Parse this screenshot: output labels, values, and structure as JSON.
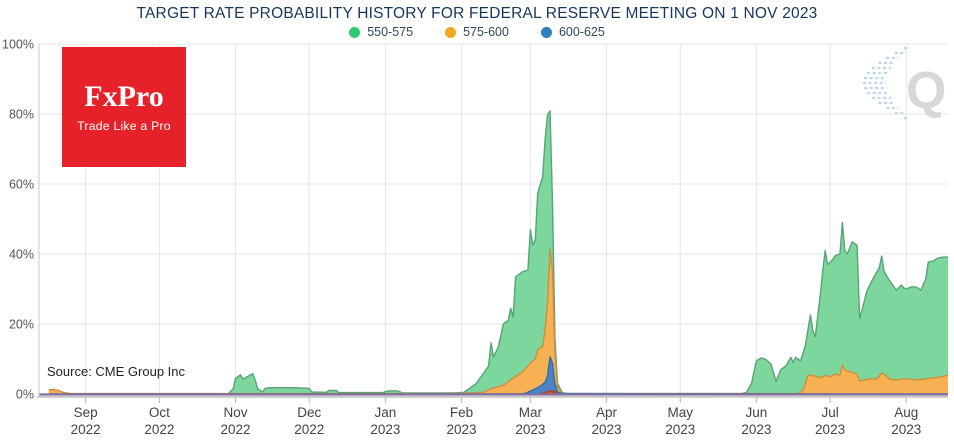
{
  "source_note": "Source: CME Group Inc",
  "branding": {
    "logo_text": "FxPro",
    "logo_tagline": "Trade Like a Pro",
    "logo_bg": "#e62129",
    "logo_text_color": "#ffffff"
  },
  "watermark": {
    "letter": "Q",
    "letter_color": "#d7d7d7",
    "swoosh_color": "#b9d7ee"
  },
  "chart_data": {
    "type": "area",
    "title": "TARGET RATE PROBABILITY HISTORY FOR FEDERAL RESERVE MEETING ON 1 NOV 2023",
    "title_color": "#17365d",
    "grid": true,
    "grid_color": "#e6e6e6",
    "axis_color": "#c9c9c9",
    "baseline_color": "#84719f",
    "legend_position": "top",
    "x_range": [
      "2022-08-13",
      "2023-08-18"
    ],
    "y_range": [
      0,
      100
    ],
    "y_ticks": [
      {
        "label": "0%",
        "value": 0
      },
      {
        "label": "20%",
        "value": 20
      },
      {
        "label": "40%",
        "value": 40
      },
      {
        "label": "60%",
        "value": 60
      },
      {
        "label": "80%",
        "value": 80
      },
      {
        "label": "100%",
        "value": 100
      }
    ],
    "x_ticks": [
      {
        "month": "Sep",
        "year": "2022",
        "date": "2022-09-01"
      },
      {
        "month": "Oct",
        "year": "2022",
        "date": "2022-10-01"
      },
      {
        "month": "Nov",
        "year": "2022",
        "date": "2022-11-01"
      },
      {
        "month": "Dec",
        "year": "2022",
        "date": "2022-12-01"
      },
      {
        "month": "Jan",
        "year": "2023",
        "date": "2023-01-01"
      },
      {
        "month": "Feb",
        "year": "2023",
        "date": "2023-02-01"
      },
      {
        "month": "Mar",
        "year": "2023",
        "date": "2023-03-01"
      },
      {
        "month": "Apr",
        "year": "2023",
        "date": "2023-04-01"
      },
      {
        "month": "May",
        "year": "2023",
        "date": "2023-05-01"
      },
      {
        "month": "Jun",
        "year": "2023",
        "date": "2023-06-01"
      },
      {
        "month": "Jul",
        "year": "2023",
        "date": "2023-07-01"
      },
      {
        "month": "Aug",
        "year": "2023",
        "date": "2023-08-01"
      }
    ],
    "legend": [
      {
        "label": "550-575",
        "color": "#2eca6f"
      },
      {
        "label": "575-600",
        "color": "#f5a623"
      },
      {
        "label": "600-625",
        "color": "#2d7fc1"
      }
    ],
    "series": [
      {
        "name": "550-575",
        "in_legend": true,
        "fill": "#7dd69b",
        "stroke": "#57a477",
        "points": [
          [
            "2022-08-17",
            0
          ],
          [
            "2022-10-29",
            0
          ],
          [
            "2022-10-31",
            1.5
          ],
          [
            "2022-11-01",
            4.5
          ],
          [
            "2022-11-03",
            5.5
          ],
          [
            "2022-11-04",
            4.2
          ],
          [
            "2022-11-06",
            5.0
          ],
          [
            "2022-11-08",
            5.8
          ],
          [
            "2022-11-09",
            4.0
          ],
          [
            "2022-11-10",
            1.5
          ],
          [
            "2022-11-12",
            0.6
          ],
          [
            "2022-11-13",
            1.6
          ],
          [
            "2022-11-15",
            1.8
          ],
          [
            "2022-11-25",
            1.8
          ],
          [
            "2022-12-01",
            1.6
          ],
          [
            "2022-12-02",
            0.6
          ],
          [
            "2022-12-08",
            0.5
          ],
          [
            "2022-12-09",
            1.0
          ],
          [
            "2022-12-12",
            1.0
          ],
          [
            "2022-12-13",
            0.4
          ],
          [
            "2022-12-31",
            0.4
          ],
          [
            "2023-01-02",
            0.9
          ],
          [
            "2023-01-06",
            0.9
          ],
          [
            "2023-01-08",
            0.3
          ],
          [
            "2023-01-29",
            0.3
          ],
          [
            "2023-02-02",
            0.5
          ],
          [
            "2023-02-04",
            1.5
          ],
          [
            "2023-02-07",
            3.0
          ],
          [
            "2023-02-09",
            5.0
          ],
          [
            "2023-02-12",
            8.0
          ],
          [
            "2023-02-13",
            14.6
          ],
          [
            "2023-02-14",
            10.6
          ],
          [
            "2023-02-16",
            13.5
          ],
          [
            "2023-02-18",
            20.0
          ],
          [
            "2023-02-20",
            21.0
          ],
          [
            "2023-02-21",
            24.5
          ],
          [
            "2023-02-22",
            22.0
          ],
          [
            "2023-02-23",
            33.5
          ],
          [
            "2023-02-26",
            35.0
          ],
          [
            "2023-02-28",
            35.4
          ],
          [
            "2023-03-01",
            46.9
          ],
          [
            "2023-03-02",
            42.6
          ],
          [
            "2023-03-03",
            44.0
          ],
          [
            "2023-03-04",
            57.4
          ],
          [
            "2023-03-06",
            62.0
          ],
          [
            "2023-03-07",
            72.6
          ],
          [
            "2023-03-08",
            79.7
          ],
          [
            "2023-03-09",
            80.9
          ],
          [
            "2023-03-10",
            54.6
          ],
          [
            "2023-03-11",
            16.3
          ],
          [
            "2023-03-12",
            3.1
          ],
          [
            "2023-03-14",
            0.4
          ],
          [
            "2023-03-16",
            0.1
          ],
          [
            "2023-05-26",
            0.1
          ],
          [
            "2023-05-28",
            0.5
          ],
          [
            "2023-05-30",
            3.0
          ],
          [
            "2023-06-01",
            9.5
          ],
          [
            "2023-06-03",
            10.3
          ],
          [
            "2023-06-05",
            9.8
          ],
          [
            "2023-06-07",
            8.5
          ],
          [
            "2023-06-09",
            3.6
          ],
          [
            "2023-06-11",
            7.0
          ],
          [
            "2023-06-13",
            8.0
          ],
          [
            "2023-06-15",
            10.5
          ],
          [
            "2023-06-16",
            9.0
          ],
          [
            "2023-06-17",
            10.5
          ],
          [
            "2023-06-19",
            9.5
          ],
          [
            "2023-06-21",
            14.0
          ],
          [
            "2023-06-23",
            22.6
          ],
          [
            "2023-06-24",
            18.0
          ],
          [
            "2023-06-25",
            16.4
          ],
          [
            "2023-06-27",
            28.0
          ],
          [
            "2023-06-28",
            35.0
          ],
          [
            "2023-06-29",
            41.0
          ],
          [
            "2023-06-30",
            37.0
          ],
          [
            "2023-07-02",
            38.3
          ],
          [
            "2023-07-03",
            39.5
          ],
          [
            "2023-07-05",
            40.0
          ],
          [
            "2023-07-06",
            49.0
          ],
          [
            "2023-07-07",
            41.0
          ],
          [
            "2023-07-08",
            40.0
          ],
          [
            "2023-07-10",
            43.5
          ],
          [
            "2023-07-12",
            42.5
          ],
          [
            "2023-07-13",
            21.5
          ],
          [
            "2023-07-14",
            24.0
          ],
          [
            "2023-07-16",
            29.4
          ],
          [
            "2023-07-17",
            30.9
          ],
          [
            "2023-07-19",
            33.7
          ],
          [
            "2023-07-21",
            36.0
          ],
          [
            "2023-07-22",
            39.4
          ],
          [
            "2023-07-23",
            35.0
          ],
          [
            "2023-07-25",
            32.6
          ],
          [
            "2023-07-27",
            30.6
          ],
          [
            "2023-07-28",
            29.7
          ],
          [
            "2023-07-30",
            31.1
          ],
          [
            "2023-07-31",
            30.3
          ],
          [
            "2023-08-01",
            30.0
          ],
          [
            "2023-08-03",
            30.6
          ],
          [
            "2023-08-05",
            30.6
          ],
          [
            "2023-08-07",
            29.7
          ],
          [
            "2023-08-09",
            33.0
          ],
          [
            "2023-08-10",
            37.7
          ],
          [
            "2023-08-12",
            38.0
          ],
          [
            "2023-08-14",
            38.9
          ],
          [
            "2023-08-16",
            39.1
          ],
          [
            "2023-08-18",
            39.1
          ]
        ]
      },
      {
        "name": "575-600",
        "in_legend": true,
        "fill": "#f7b052",
        "stroke": "#cd8f3f",
        "points": [
          [
            "2022-08-17",
            1.2
          ],
          [
            "2022-08-19",
            1.3
          ],
          [
            "2022-08-21",
            1.0
          ],
          [
            "2022-08-23",
            0.4
          ],
          [
            "2022-08-26",
            0.1
          ],
          [
            "2023-01-29",
            0.1
          ],
          [
            "2023-02-10",
            0.5
          ],
          [
            "2023-02-13",
            1.5
          ],
          [
            "2023-02-18",
            2.5
          ],
          [
            "2023-02-21",
            4.0
          ],
          [
            "2023-02-23",
            5.0
          ],
          [
            "2023-02-26",
            6.4
          ],
          [
            "2023-03-01",
            8.9
          ],
          [
            "2023-03-03",
            10.0
          ],
          [
            "2023-03-04",
            12.6
          ],
          [
            "2023-03-06",
            13.5
          ],
          [
            "2023-03-07",
            18.3
          ],
          [
            "2023-03-08",
            26.0
          ],
          [
            "2023-03-09",
            41.4
          ],
          [
            "2023-03-10",
            35.0
          ],
          [
            "2023-03-11",
            12.0
          ],
          [
            "2023-03-12",
            2.0
          ],
          [
            "2023-03-14",
            0.1
          ],
          [
            "2023-06-18",
            0.1
          ],
          [
            "2023-06-20",
            1.1
          ],
          [
            "2023-06-21",
            3.1
          ],
          [
            "2023-06-22",
            5.4
          ],
          [
            "2023-06-25",
            5.1
          ],
          [
            "2023-06-27",
            4.6
          ],
          [
            "2023-06-29",
            5.4
          ],
          [
            "2023-07-01",
            4.9
          ],
          [
            "2023-07-03",
            5.7
          ],
          [
            "2023-07-05",
            5.4
          ],
          [
            "2023-07-06",
            8.3
          ],
          [
            "2023-07-07",
            6.9
          ],
          [
            "2023-07-09",
            6.3
          ],
          [
            "2023-07-11",
            6.0
          ],
          [
            "2023-07-12",
            5.7
          ],
          [
            "2023-07-13",
            3.7
          ],
          [
            "2023-07-15",
            4.0
          ],
          [
            "2023-07-17",
            4.3
          ],
          [
            "2023-07-20",
            4.3
          ],
          [
            "2023-07-22",
            6.0
          ],
          [
            "2023-07-24",
            5.1
          ],
          [
            "2023-07-25",
            4.3
          ],
          [
            "2023-07-28",
            4.0
          ],
          [
            "2023-07-31",
            4.3
          ],
          [
            "2023-08-02",
            4.3
          ],
          [
            "2023-08-05",
            4.0
          ],
          [
            "2023-08-09",
            4.3
          ],
          [
            "2023-08-12",
            4.6
          ],
          [
            "2023-08-15",
            4.9
          ],
          [
            "2023-08-18",
            5.4
          ]
        ]
      },
      {
        "name": "600-625",
        "in_legend": true,
        "fill": "#4b84c4",
        "stroke": "#2f6ea8",
        "points": [
          [
            "2022-08-17",
            0
          ],
          [
            "2023-02-25",
            0
          ],
          [
            "2023-02-27",
            0.2
          ],
          [
            "2023-03-01",
            0.8
          ],
          [
            "2023-03-03",
            1.5
          ],
          [
            "2023-03-05",
            2.2
          ],
          [
            "2023-03-07",
            3.4
          ],
          [
            "2023-03-08",
            5.1
          ],
          [
            "2023-03-09",
            10.6
          ],
          [
            "2023-03-10",
            8.9
          ],
          [
            "2023-03-11",
            2.9
          ],
          [
            "2023-03-12",
            0.6
          ],
          [
            "2023-03-14",
            0.1
          ],
          [
            "2023-08-18",
            0
          ]
        ]
      },
      {
        "name": "unlabeled-red",
        "in_legend": false,
        "fill": "#c4533a",
        "stroke": "#a84330",
        "points": [
          [
            "2023-03-05",
            0
          ],
          [
            "2023-03-07",
            0.5
          ],
          [
            "2023-03-09",
            0.9
          ],
          [
            "2023-03-11",
            0.7
          ],
          [
            "2023-03-12",
            0
          ]
        ]
      }
    ]
  }
}
